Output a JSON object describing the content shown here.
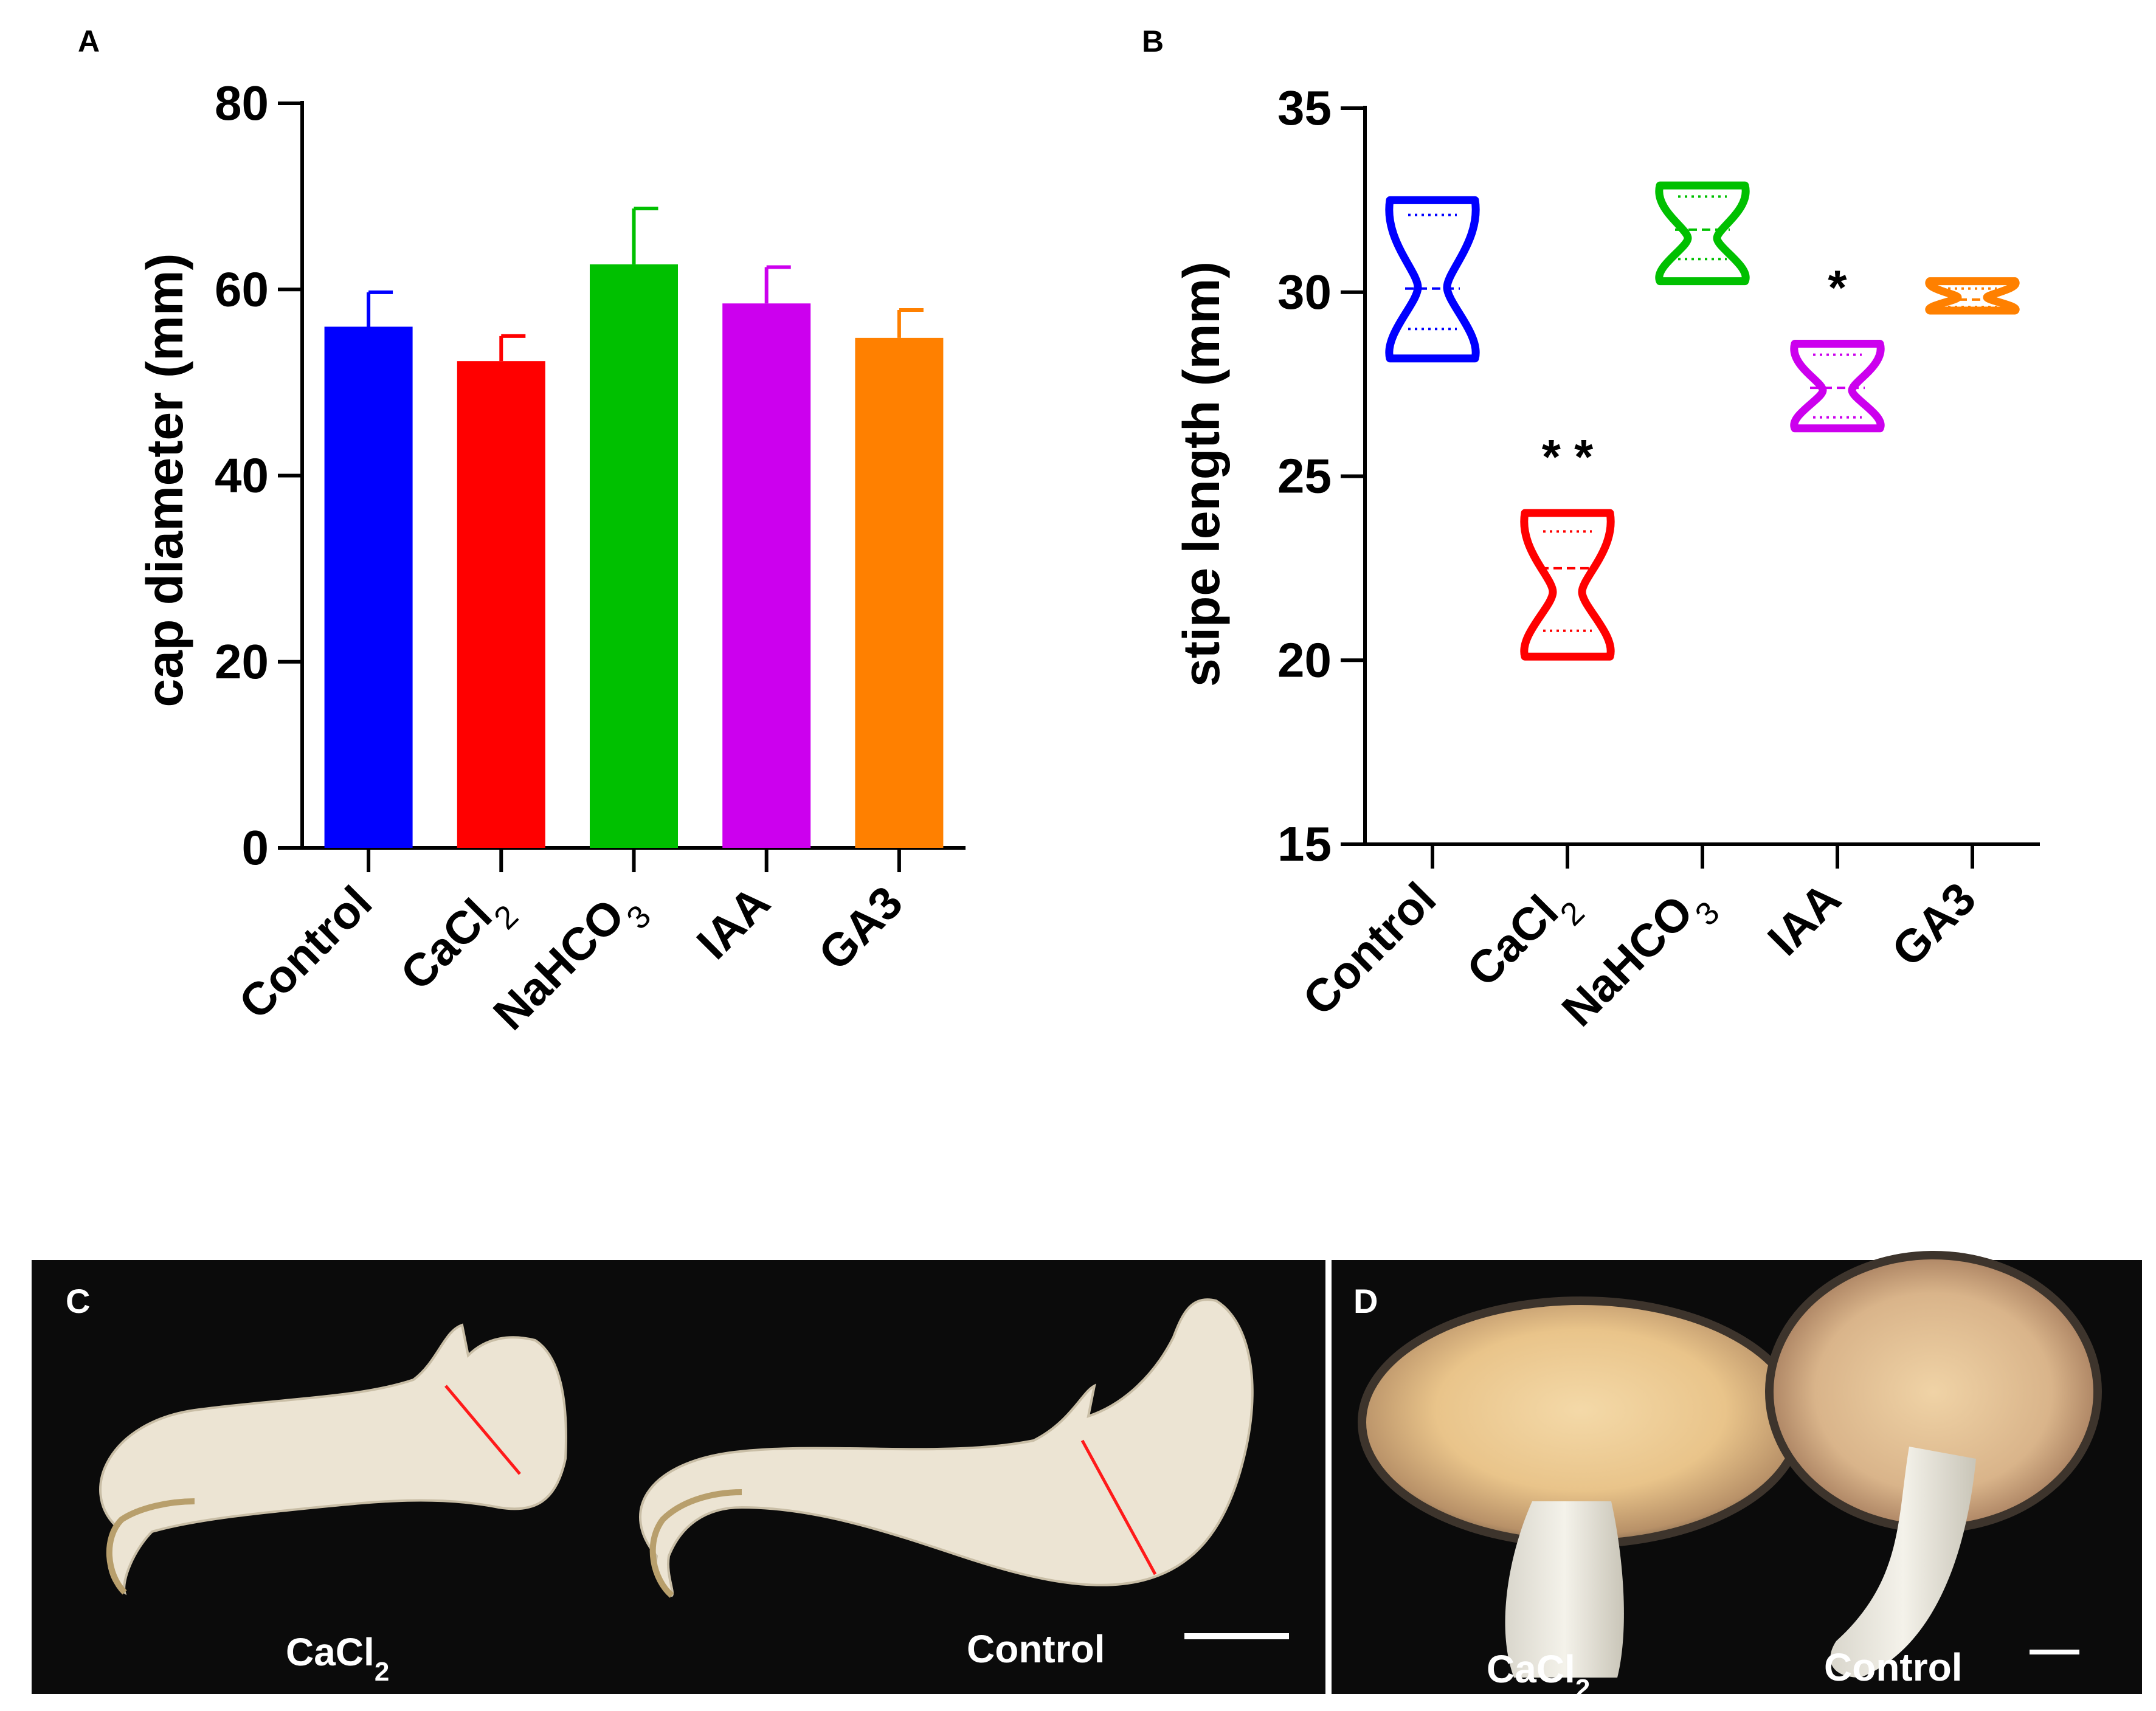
{
  "panels": {
    "a": "A",
    "b": "B",
    "c": "C",
    "d": "D"
  },
  "colors": {
    "Control": "#0000ff",
    "CaCl2": "#ff0000",
    "NaHCO3": "#00c000",
    "IAA": "#cc00ee",
    "GA3": "#ff8000",
    "photo_bg": "#0b0b0b"
  },
  "chart_data": [
    {
      "type": "bar",
      "panel": "A",
      "categories": [
        "Control",
        "CaCl2",
        "NaHCO3",
        "IAA",
        "GA3"
      ],
      "category_labels": [
        {
          "main": "Control",
          "sub": ""
        },
        {
          "main": "CaCl",
          "sub": "2"
        },
        {
          "main": "NaHCO",
          "sub": "3"
        },
        {
          "main": "IAA",
          "sub": ""
        },
        {
          "main": "GA3",
          "sub": ""
        }
      ],
      "values": [
        56,
        52.3,
        62.7,
        58.5,
        54.8
      ],
      "errors": [
        3.7,
        2.7,
        6.0,
        3.9,
        3.0
      ],
      "ylabel": "cap diameter (mm)",
      "xlabel": "",
      "ylim": [
        0,
        80
      ],
      "yticks": [
        0,
        20,
        40,
        60,
        80
      ]
    },
    {
      "type": "violin",
      "panel": "B",
      "categories": [
        "Control",
        "CaCl2",
        "NaHCO3",
        "IAA",
        "GA3"
      ],
      "category_labels": [
        {
          "main": "Control",
          "sub": ""
        },
        {
          "main": "CaCl",
          "sub": "2"
        },
        {
          "main": "NaHCO",
          "sub": "3"
        },
        {
          "main": "IAA",
          "sub": ""
        },
        {
          "main": "GA3",
          "sub": ""
        }
      ],
      "min": [
        28.2,
        20.1,
        30.3,
        26.3,
        29.5
      ],
      "max": [
        32.5,
        24.0,
        32.9,
        28.6,
        30.3
      ],
      "q1": [
        29.0,
        20.8,
        30.9,
        26.6,
        29.6
      ],
      "median": [
        30.1,
        22.5,
        31.7,
        27.4,
        29.8
      ],
      "q3": [
        32.1,
        23.5,
        32.6,
        28.3,
        30.1
      ],
      "significance": [
        "",
        "* *",
        "",
        "*",
        ""
      ],
      "ylabel": "stipe length (mm)",
      "xlabel": "",
      "ylim": [
        15,
        35
      ],
      "yticks": [
        15,
        20,
        25,
        30,
        35
      ]
    }
  ],
  "photos": {
    "c": {
      "left": {
        "main": "CaCl",
        "sub": "2"
      },
      "right": "Control"
    },
    "d": {
      "left": {
        "main": "CaCl",
        "sub": "2"
      },
      "right": "Control"
    }
  }
}
